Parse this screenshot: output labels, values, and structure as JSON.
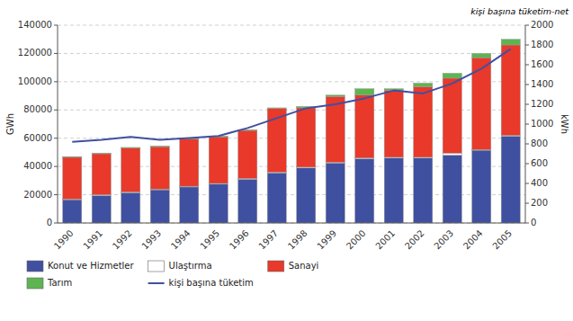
{
  "chart_data": {
    "type": "bar",
    "stacked": true,
    "categories": [
      "1990",
      "1991",
      "1992",
      "1993",
      "1994",
      "1995",
      "1996",
      "1997",
      "1998",
      "1999",
      "2000",
      "2001",
      "2002",
      "2003",
      "2004",
      "2005"
    ],
    "series": [
      {
        "name": "Konut ve Hizmetler",
        "color": "#4050A0",
        "values": [
          16500,
          19500,
          21500,
          23500,
          25500,
          27500,
          31000,
          35500,
          39000,
          42500,
          45500,
          46000,
          46000,
          48000,
          51500,
          61500
        ]
      },
      {
        "name": "Ulaştırma",
        "color": "#FFFFFF",
        "values": [
          500,
          500,
          500,
          500,
          500,
          500,
          500,
          500,
          500,
          500,
          500,
          500,
          500,
          1500,
          500,
          500
        ]
      },
      {
        "name": "Sanayi",
        "color": "#E8392A",
        "values": [
          29500,
          29000,
          31000,
          30000,
          33500,
          33000,
          34000,
          45000,
          42000,
          46500,
          44500,
          47500,
          50000,
          53000,
          65000,
          64000
        ]
      },
      {
        "name": "Tarım",
        "color": "#5DB551",
        "values": [
          500,
          500,
          500,
          500,
          500,
          500,
          500,
          500,
          1000,
          1000,
          4500,
          1000,
          2500,
          3500,
          3000,
          4000
        ]
      },
      {
        "name": "kişi başına tüketim",
        "type": "line",
        "axis": "y2",
        "color": "#4050A0",
        "values": [
          820,
          840,
          870,
          840,
          860,
          880,
          960,
          1060,
          1160,
          1200,
          1260,
          1340,
          1310,
          1410,
          1560,
          1760
        ]
      }
    ],
    "ylabel": "GWh",
    "y2label": "kWh",
    "annotations": [
      "kişi başına tüketim-net"
    ],
    "ylim": [
      0,
      140000
    ],
    "yticks": [
      0,
      20000,
      40000,
      60000,
      80000,
      100000,
      120000,
      140000
    ],
    "y2lim": [
      0,
      2000
    ],
    "y2ticks": [
      0,
      200,
      400,
      600,
      800,
      1000,
      1200,
      1400,
      1600,
      1800,
      2000
    ],
    "grid": true,
    "legend": "bottom"
  }
}
